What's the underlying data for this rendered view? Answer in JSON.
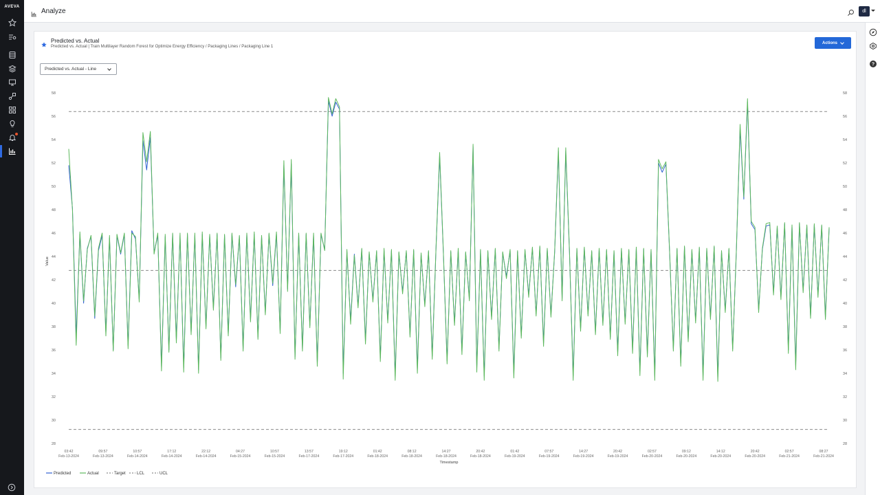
{
  "app": {
    "logo": "AVEVA",
    "page_title": "Analyze",
    "user_initials": "dl"
  },
  "card": {
    "title": "Predicted vs. Actual",
    "breadcrumb": "Predicted vs. Actual | Train Multilayer Random Forest for Optimize Energy Efficiency / Packaging Lines / Packaging Line 1",
    "actions_label": "Actions",
    "view_select": "Predicted vs. Actual - Line"
  },
  "colors": {
    "accent": "#2368d8",
    "predicted": "#2f5fd0",
    "actual": "#5cb85c",
    "reference": "#8a8a8a"
  },
  "chart_data": {
    "type": "line",
    "xlabel": "Timestamp",
    "ylabel": "Value",
    "ylim": [
      28,
      58
    ],
    "y_ticks": [
      28,
      30,
      32,
      34,
      36,
      38,
      40,
      42,
      44,
      46,
      48,
      50,
      52,
      54,
      56,
      58
    ],
    "x_ticks": [
      {
        "time": "03:42",
        "date": "Feb-13-2024"
      },
      {
        "time": "09:57",
        "date": "Feb-13-2024"
      },
      {
        "time": "10:57",
        "date": "Feb-14-2024"
      },
      {
        "time": "17:12",
        "date": "Feb-14-2024"
      },
      {
        "time": "22:12",
        "date": "Feb-14-2024"
      },
      {
        "time": "04:27",
        "date": "Feb-15-2024"
      },
      {
        "time": "10:57",
        "date": "Feb-15-2024"
      },
      {
        "time": "13:57",
        "date": "Feb-17-2024"
      },
      {
        "time": "19:12",
        "date": "Feb-17-2024"
      },
      {
        "time": "01:42",
        "date": "Feb-18-2024"
      },
      {
        "time": "08:12",
        "date": "Feb-18-2024"
      },
      {
        "time": "14:27",
        "date": "Feb-18-2024"
      },
      {
        "time": "20:42",
        "date": "Feb-18-2024"
      },
      {
        "time": "01:42",
        "date": "Feb-19-2024"
      },
      {
        "time": "07:57",
        "date": "Feb-19-2024"
      },
      {
        "time": "14:27",
        "date": "Feb-19-2024"
      },
      {
        "time": "20:42",
        "date": "Feb-19-2024"
      },
      {
        "time": "02:57",
        "date": "Feb-20-2024"
      },
      {
        "time": "09:12",
        "date": "Feb-20-2024"
      },
      {
        "time": "14:12",
        "date": "Feb-20-2024"
      },
      {
        "time": "20:42",
        "date": "Feb-20-2024"
      },
      {
        "time": "02:57",
        "date": "Feb-21-2024"
      },
      {
        "time": "08:27",
        "date": "Feb-21-2024"
      }
    ],
    "reference_lines": [
      {
        "name": "Target",
        "value": 42.8
      },
      {
        "name": "LCL",
        "value": 29.2
      },
      {
        "name": "UCL",
        "value": 56.4
      }
    ],
    "legend": [
      "Predicted",
      "Actual",
      "Target",
      "LCL",
      "UCL"
    ],
    "legend_position": "bottom-left",
    "series": [
      {
        "name": "Actual",
        "values": [
          53.2,
          48.0,
          36.4,
          46.1,
          40.2,
          44.6,
          45.8,
          38.9,
          44.7,
          46.0,
          37.2,
          45.8,
          35.9,
          45.9,
          44.3,
          46.0,
          36.1,
          46.0,
          45.7,
          40.1,
          54.6,
          52.1,
          54.7,
          44.2,
          46.0,
          34.2,
          45.9,
          35.8,
          46.0,
          36.6,
          46.0,
          34.1,
          46.0,
          37.3,
          46.0,
          34.0,
          46.1,
          37.8,
          45.9,
          39.4,
          46.0,
          35.1,
          45.9,
          37.2,
          46.0,
          41.6,
          45.8,
          35.9,
          46.0,
          38.4,
          46.1,
          36.9,
          45.8,
          39.0,
          46.0,
          41.7,
          46.1,
          37.4,
          52.2,
          41.0,
          52.3,
          35.2,
          46.0,
          35.9,
          46.0,
          37.9,
          46.0,
          34.6,
          46.0,
          44.5,
          57.6,
          56.2,
          57.5,
          56.8,
          33.5,
          44.6,
          38.2,
          44.1,
          39.6,
          44.7,
          36.5,
          44.4,
          40.1,
          44.5,
          35.0,
          44.7,
          38.3,
          44.6,
          33.4,
          44.4,
          40.8,
          44.5,
          37.1,
          44.6,
          34.0,
          44.3,
          39.7,
          44.5,
          35.2,
          44.6,
          52.9,
          44.4,
          34.8,
          44.5,
          38.1,
          44.7,
          35.6,
          44.4,
          40.2,
          53.6,
          34.1,
          44.6,
          33.4,
          44.5,
          38.6,
          44.7,
          35.9,
          44.4,
          42.1,
          44.6,
          33.6,
          44.5,
          37.0,
          44.6,
          40.5,
          44.8,
          38.9,
          44.9,
          36.3,
          44.7,
          38.8,
          44.5,
          53.3,
          40.2,
          53.3,
          44.5,
          33.4,
          44.7,
          37.6,
          44.8,
          38.9,
          44.5,
          37.3,
          44.7,
          38.1,
          44.6,
          36.9,
          44.5,
          35.5,
          44.7,
          38.2,
          44.6,
          35.7,
          44.8,
          33.8,
          44.7,
          35.4,
          44.6,
          33.4,
          52.3,
          51.5,
          52.1,
          44.4,
          35.9,
          44.7,
          34.6,
          44.9,
          36.7,
          44.6,
          38.3,
          44.8,
          33.4,
          44.7,
          38.6,
          44.9,
          33.3,
          44.5,
          39.2,
          44.7,
          35.9,
          44.6,
          55.3,
          49.1,
          57.5,
          47.0,
          46.5,
          39.2,
          44.7,
          46.8,
          46.9,
          40.7,
          46.6,
          40.3,
          46.9,
          35.7,
          46.7,
          34.3,
          46.9,
          40.9,
          46.7,
          38.7,
          46.8,
          40.5,
          46.7,
          38.6,
          46.5
        ]
      },
      {
        "name": "Predicted",
        "values": [
          51.8,
          48.1,
          37.2,
          45.9,
          40.0,
          44.7,
          45.7,
          38.7,
          44.5,
          45.8,
          37.5,
          45.6,
          36.0,
          45.8,
          44.2,
          45.9,
          36.4,
          46.2,
          45.5,
          40.3,
          53.9,
          51.4,
          54.2,
          44.3,
          45.8,
          34.6,
          45.7,
          36.0,
          45.9,
          36.9,
          45.8,
          34.5,
          45.9,
          37.5,
          45.8,
          34.3,
          45.9,
          38.0,
          45.8,
          39.6,
          45.9,
          35.3,
          45.8,
          37.4,
          45.9,
          41.4,
          45.7,
          36.1,
          45.9,
          38.6,
          45.9,
          37.1,
          45.7,
          39.2,
          45.9,
          41.5,
          45.9,
          37.6,
          51.8,
          41.2,
          51.9,
          35.4,
          45.9,
          36.1,
          45.9,
          38.1,
          45.8,
          34.9,
          45.9,
          44.6,
          57.3,
          56.0,
          57.2,
          56.6,
          34.0,
          44.4,
          38.5,
          44.2,
          39.8,
          44.6,
          36.8,
          44.3,
          40.3,
          44.4,
          35.3,
          44.5,
          38.5,
          44.5,
          33.8,
          44.3,
          41.0,
          44.4,
          37.3,
          44.5,
          34.4,
          44.2,
          39.9,
          44.4,
          35.5,
          44.5,
          52.6,
          44.3,
          35.1,
          44.4,
          38.3,
          44.5,
          35.9,
          44.3,
          40.4,
          53.4,
          34.5,
          44.5,
          33.8,
          44.4,
          38.8,
          44.6,
          36.1,
          44.3,
          42.3,
          44.5,
          34.0,
          44.4,
          37.2,
          44.5,
          40.7,
          44.7,
          39.1,
          44.8,
          36.6,
          44.6,
          39.0,
          44.4,
          53.0,
          40.4,
          53.0,
          44.4,
          33.8,
          44.6,
          37.8,
          44.7,
          39.1,
          44.4,
          37.5,
          44.6,
          38.3,
          44.5,
          37.1,
          44.4,
          35.8,
          44.6,
          38.4,
          44.5,
          36.0,
          44.7,
          34.2,
          44.6,
          35.7,
          44.5,
          33.8,
          52.0,
          51.2,
          51.9,
          44.3,
          36.1,
          44.6,
          34.9,
          44.8,
          36.9,
          44.5,
          38.5,
          44.7,
          33.8,
          44.6,
          38.8,
          44.8,
          33.7,
          44.4,
          39.4,
          44.6,
          36.1,
          44.5,
          54.9,
          48.9,
          57.2,
          46.8,
          46.3,
          39.4,
          44.6,
          46.6,
          46.7,
          40.9,
          46.5,
          40.5,
          46.8,
          36.0,
          46.6,
          34.7,
          46.8,
          41.1,
          46.6,
          38.9,
          46.7,
          40.7,
          46.6,
          38.8,
          46.4
        ]
      }
    ]
  }
}
